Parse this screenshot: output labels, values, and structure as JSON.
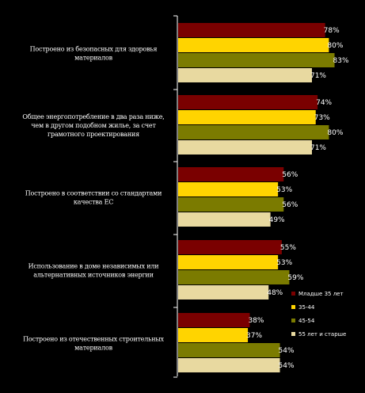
{
  "chart_data": {
    "type": "bar",
    "orientation": "horizontal",
    "categories": [
      [
        "Построено из безопасных для здоровья",
        "материалов"
      ],
      [
        "Общее энергопотребление в два раза ниже,",
        "чем в другом подобном жилье, за счет",
        "грамотного проектирования"
      ],
      [
        "Построено в соответствии со стандартами",
        "качества ЕС"
      ],
      [
        "Использование в доме независимых или",
        "альтернативных источников энергии"
      ],
      [
        "Построено из отечественных строительных",
        "материалов"
      ]
    ],
    "series": [
      {
        "name": "Младше 35 лет",
        "color": "#7a0000",
        "values": [
          78,
          74,
          56,
          55,
          38
        ],
        "labels": [
          "78%",
          "74%",
          "56%",
          "55%",
          "38%"
        ]
      },
      {
        "name": "35-44",
        "color": "#ffd400",
        "values": [
          80,
          73,
          53,
          53,
          37
        ],
        "labels": [
          "80%",
          "73%",
          "53%",
          "53%",
          "37%"
        ]
      },
      {
        "name": "45-54",
        "color": "#7b7b00",
        "values": [
          83,
          80,
          56,
          59,
          54
        ],
        "labels": [
          "83%",
          "80%",
          "56%",
          "59%",
          "54%"
        ]
      },
      {
        "name": "55 лет и старше",
        "color": "#e8d9a0",
        "values": [
          71,
          71,
          49,
          48,
          54
        ],
        "labels": [
          "71%",
          "71%",
          "49%",
          "48%",
          "54%"
        ]
      }
    ],
    "xlim": [
      0,
      100
    ],
    "legend_position": "right"
  }
}
